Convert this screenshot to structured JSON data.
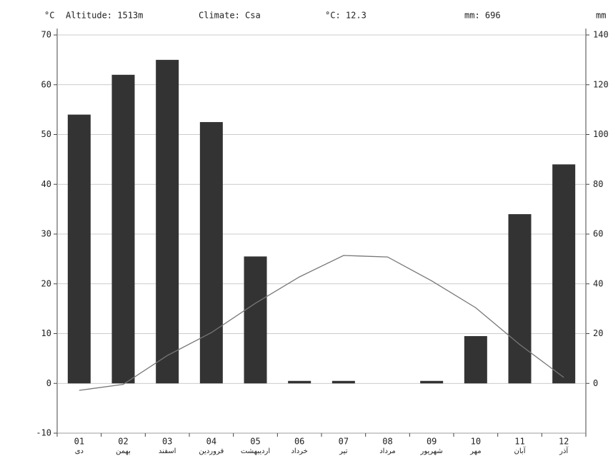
{
  "chart_data": {
    "type": "climate",
    "header": {
      "left_unit": "°C",
      "altitude": "Altitude: 1513m",
      "climate": "Climate: Csa",
      "mean_temp": "°C: 12.3",
      "total_precip": "mm: 696",
      "right_unit": "mm"
    },
    "categories": [
      "01",
      "02",
      "03",
      "04",
      "05",
      "06",
      "07",
      "08",
      "09",
      "10",
      "11",
      "12"
    ],
    "month_names": [
      "دی",
      "بهمن",
      "اسفند",
      "فروردین",
      "اردیبهشت",
      "خرداد",
      "تیر",
      "مرداد",
      "شهریور",
      "مهر",
      "آبان",
      "آذر"
    ],
    "series": [
      {
        "name": "mm",
        "type": "bar",
        "axis": "y2",
        "color": "#333333",
        "values": [
          108,
          124,
          130,
          105,
          51,
          1,
          1,
          0,
          1,
          19,
          68,
          88
        ]
      },
      {
        "name": "°C",
        "type": "line",
        "color": "#777777",
        "values": [
          -1.4,
          -0.2,
          5.6,
          10.2,
          16.1,
          21.4,
          25.7,
          25.4,
          20.6,
          15.2,
          7.8,
          1.2
        ]
      }
    ],
    "ylim": [
      -10,
      70
    ],
    "yticks": [
      -10,
      0,
      10,
      20,
      30,
      40,
      50,
      60,
      70
    ],
    "y2lim": [
      -20,
      140
    ],
    "y2ticks": [
      0,
      20,
      40,
      60,
      80,
      100,
      120,
      140
    ],
    "grid": true
  }
}
